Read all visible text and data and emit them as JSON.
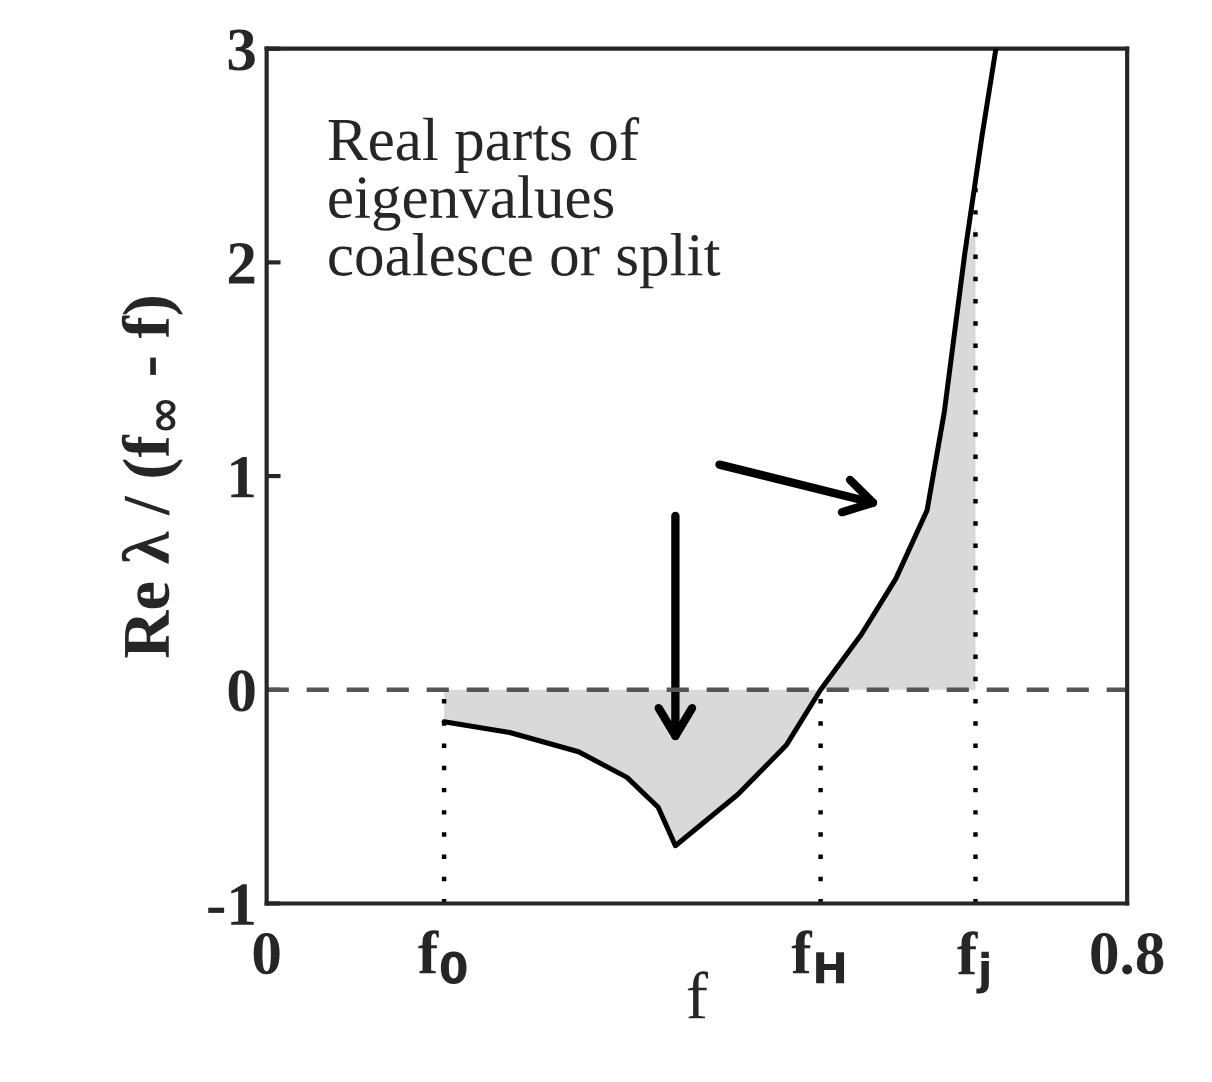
{
  "chart_data": {
    "type": "line",
    "xlabel": "f",
    "ylabel": "Re λ / (f$_{∞}$ - f)",
    "xlim": [
      0,
      0.8
    ],
    "ylim": [
      -1,
      3
    ],
    "xticks": [
      0,
      {
        "value": 0.165,
        "label": "f$_{0}$"
      },
      {
        "value": 0.515,
        "label": "f$_{H}$"
      },
      {
        "value": 0.659,
        "label": "f$_{j}$"
      },
      0.8
    ],
    "yticks": [
      -1,
      0,
      1,
      2,
      3
    ],
    "series": [
      {
        "type": "area",
        "color": "#d9d9d9",
        "x": [
          0.165,
          0.226,
          0.29,
          0.335,
          0.364,
          0.38,
          0.438,
          0.483,
          0.515,
          0.553,
          0.585,
          0.614,
          0.63,
          0.649,
          0.659
        ],
        "values": [
          -0.15,
          -0.2,
          -0.29,
          -0.41,
          -0.55,
          -0.73,
          -0.49,
          -0.26,
          0.0,
          0.26,
          0.52,
          0.84,
          1.3,
          2.04,
          2.17
        ]
      },
      {
        "color": "#000000",
        "x": [
          0.165,
          0.226,
          0.29,
          0.335,
          0.364,
          0.38,
          0.438,
          0.483,
          0.515,
          0.553,
          0.585,
          0.614,
          0.63,
          0.649,
          0.665,
          0.678
        ],
        "values": [
          -0.15,
          -0.2,
          -0.29,
          -0.41,
          -0.55,
          -0.73,
          -0.49,
          -0.26,
          0.0,
          0.26,
          0.52,
          0.84,
          1.3,
          2.04,
          2.59,
          3.0
        ]
      }
    ],
    "ref_lines": [
      {
        "axis": "y",
        "value": 0,
        "line_style": "dashed",
        "color": "#555555"
      },
      {
        "axis": "x",
        "value": 0.165,
        "line_style": "dotted",
        "color": "#000000"
      },
      {
        "axis": "x",
        "value": 0.515,
        "line_style": "dotted",
        "color": "#000000"
      },
      {
        "axis": "x",
        "value": 0.659,
        "line_style": "dotted",
        "color": "#000000"
      }
    ],
    "annotations": [
      "Real parts of\neigenvalues\ncoalesce or split"
    ],
    "grid": false,
    "legend": false,
    "marker": "none",
    "line_style": "solid"
  }
}
